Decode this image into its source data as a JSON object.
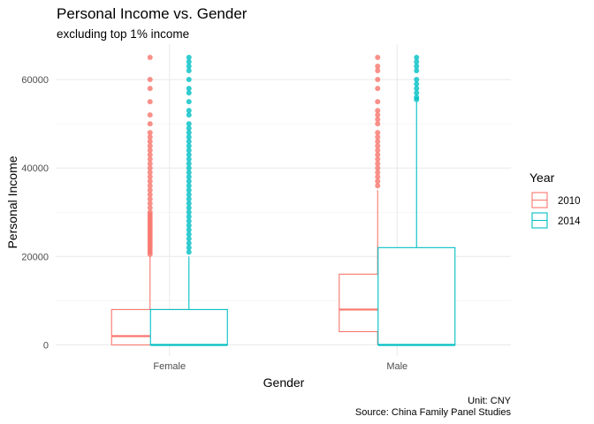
{
  "chart_data": {
    "type": "boxplot",
    "title": "Personal Income vs. Gender",
    "subtitle": "excluding top 1% income",
    "xlabel": "Gender",
    "ylabel": "Personal Income",
    "categories": [
      "Female",
      "Male"
    ],
    "ylim": [
      -2500,
      68000
    ],
    "yticks": [
      0,
      20000,
      40000,
      60000
    ],
    "ytick_labels": [
      "0",
      "20000",
      "40000",
      "60000"
    ],
    "grid": true,
    "legend": {
      "title": "Year",
      "placement": "right"
    },
    "caption": [
      "Unit: CNY",
      "Source: China Family Panel Studies"
    ],
    "series": [
      {
        "name": "2010",
        "color": "#F8766D",
        "boxes": [
          {
            "category": "Female",
            "min": 0,
            "q1": 0,
            "median": 2000,
            "q3": 8000,
            "max": 20000,
            "outliers": [
              20500,
              21000,
              21500,
              22000,
              22500,
              23000,
              23500,
              24000,
              24500,
              25000,
              25500,
              26000,
              26500,
              27000,
              27500,
              28000,
              28500,
              29000,
              29500,
              30000,
              31000,
              32000,
              33000,
              34000,
              35000,
              36000,
              37000,
              38000,
              39000,
              40000,
              41000,
              42000,
              43000,
              44000,
              45000,
              46000,
              47000,
              48000,
              50000,
              52000,
              55000,
              58000,
              60000,
              65000
            ]
          },
          {
            "category": "Male",
            "min": 0,
            "q1": 3000,
            "median": 8000,
            "q3": 16000,
            "max": 35000,
            "outliers": [
              36000,
              37000,
              38000,
              39000,
              40000,
              41000,
              42000,
              43000,
              44000,
              45000,
              46000,
              47000,
              48000,
              50000,
              51000,
              52000,
              53000,
              55000,
              58000,
              60000,
              62000,
              63000,
              65000
            ]
          }
        ]
      },
      {
        "name": "2014",
        "color": "#00BFC4",
        "boxes": [
          {
            "category": "Female",
            "min": 0,
            "q1": 0,
            "median": 0,
            "q3": 8000,
            "max": 20000,
            "outliers": [
              21000,
              22000,
              23000,
              24000,
              25000,
              26000,
              27000,
              28000,
              29000,
              30000,
              31000,
              32000,
              33000,
              34000,
              35000,
              36000,
              37000,
              38000,
              39000,
              40000,
              41000,
              42000,
              43000,
              44000,
              45000,
              46000,
              47000,
              48000,
              49000,
              50000,
              52000,
              53000,
              55000,
              57000,
              58000,
              60000,
              62000,
              63000,
              64000,
              65000
            ]
          },
          {
            "category": "Male",
            "min": 0,
            "q1": 0,
            "median": 0,
            "q3": 22000,
            "max": 55000,
            "outliers": [
              55500,
              56000,
              57000,
              58000,
              59000,
              60000,
              62000,
              63000,
              64000,
              65000
            ]
          }
        ]
      }
    ]
  }
}
